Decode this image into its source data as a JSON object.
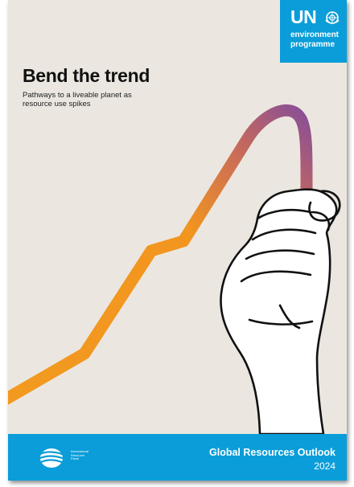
{
  "publisher": {
    "letters": "UN",
    "line1": "environment",
    "line2": "programme",
    "emblem_icon": "un-emblem-icon",
    "badge_color": "#0a9dd9"
  },
  "cover": {
    "title": "Bend the trend",
    "subtitle_line1": "Pathways to a liveable planet as",
    "subtitle_line2": "resource use spikes",
    "background_color": "#ebe7e0",
    "illustration_icon": "hand-bending-trend-line-icon",
    "line_colors": [
      "#f29a20",
      "#ef8f36",
      "#b8646f",
      "#8a4f96"
    ]
  },
  "footer": {
    "org_line1": "International",
    "org_line2": "Resource",
    "org_line3": "Panel",
    "org_logo_icon": "irp-globe-icon",
    "report_title": "Global Resources Outlook",
    "year": "2024",
    "band_color": "#0a9dd9"
  }
}
